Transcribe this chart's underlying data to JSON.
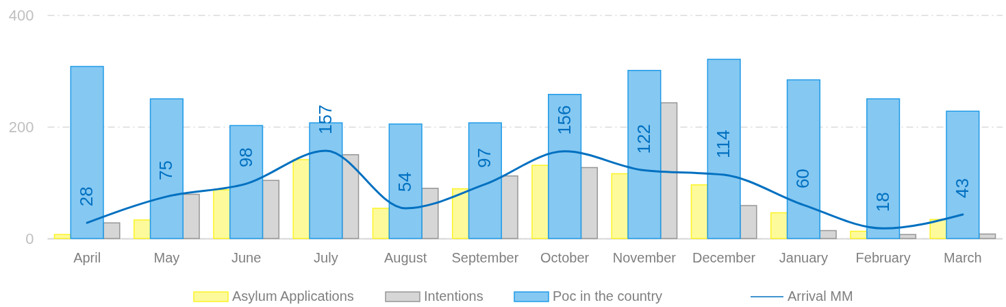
{
  "chart_data": {
    "type": "bar",
    "categories": [
      "April",
      "May",
      "June",
      "July",
      "August",
      "September",
      "October",
      "November",
      "December",
      "January",
      "February",
      "March"
    ],
    "series": [
      {
        "name": "Asylum Applications",
        "color": "#fdfa9c",
        "values": [
          7,
          33,
          87,
          141,
          54,
          89,
          131,
          116,
          96,
          46,
          13,
          34
        ]
      },
      {
        "name": "Intentions",
        "color": "#d6d6d6",
        "values": [
          28,
          79,
          104,
          150,
          90,
          112,
          127,
          243,
          59,
          14,
          7,
          8
        ]
      },
      {
        "name": "Poc in the country",
        "color": "#85c8f2",
        "values": [
          308,
          250,
          202,
          207,
          205,
          207,
          258,
          301,
          321,
          284,
          250,
          228
        ]
      },
      {
        "name": "Arrival MM",
        "type": "line",
        "color": "#0070c0",
        "values": [
          28,
          75,
          98,
          157,
          54,
          97,
          156,
          122,
          114,
          60,
          18,
          43
        ],
        "value_labels": [
          "28",
          "75",
          "98",
          "157",
          "54",
          "97",
          "156",
          "122",
          "114",
          "60",
          "18",
          "43"
        ]
      }
    ],
    "ylim": [
      0,
      400
    ],
    "yticks": [
      0,
      200,
      400
    ],
    "grid": "y",
    "legend": "bottom"
  }
}
